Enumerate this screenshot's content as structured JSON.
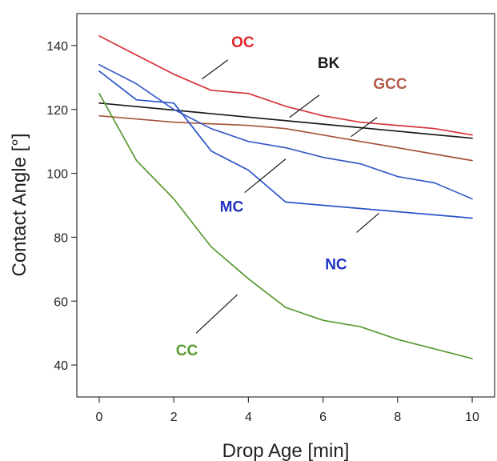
{
  "chart_data": {
    "type": "line",
    "xlabel": "Drop Age [min]",
    "ylabel": "Contact Angle [°]",
    "xlim": [
      -0.6,
      10.6
    ],
    "ylim": [
      30,
      150
    ],
    "xticks": [
      0,
      2,
      4,
      6,
      8,
      10
    ],
    "yticks": [
      40,
      60,
      80,
      100,
      120,
      140
    ],
    "grid": false,
    "legend": "inline labels",
    "series": [
      {
        "name": "OC",
        "color": "#d6313a",
        "x": [
          0,
          1,
          2,
          3,
          4,
          5,
          6,
          7,
          8,
          9,
          10
        ],
        "y": [
          143,
          137,
          131,
          126,
          125,
          121,
          118,
          116,
          115,
          114,
          112
        ]
      },
      {
        "name": "BK",
        "color": "#1a1a1a",
        "x": [
          0,
          10
        ],
        "y": [
          122,
          111
        ]
      },
      {
        "name": "GCC",
        "color": "#a4553a",
        "x": [
          0,
          2,
          4,
          5,
          6,
          7,
          8,
          9,
          10
        ],
        "y": [
          118,
          116,
          115,
          114,
          112,
          110,
          108,
          106,
          104
        ]
      },
      {
        "name": "MC",
        "color": "#3a5bc7",
        "x": [
          0,
          1,
          2,
          3,
          4,
          5,
          6,
          7,
          8,
          9,
          10
        ],
        "y": [
          134,
          128,
          120,
          114,
          110,
          108,
          105,
          103,
          99,
          97,
          92
        ]
      },
      {
        "name": "NC",
        "color": "#2a55c8",
        "x": [
          0,
          1,
          2,
          3,
          4,
          5,
          6,
          7,
          8,
          9,
          10
        ],
        "y": [
          132,
          123,
          122,
          107,
          101,
          91,
          90,
          89,
          88,
          87,
          86
        ]
      },
      {
        "name": "CC",
        "color": "#5a9a32",
        "x": [
          0,
          1,
          2,
          3,
          4,
          5,
          6,
          7,
          8,
          9,
          10
        ],
        "y": [
          125,
          104,
          92,
          77,
          67,
          58,
          54,
          52,
          48,
          45,
          42
        ]
      }
    ],
    "annotations": [
      {
        "text": "OC",
        "color": "#e0262d",
        "x": 3.85,
        "y": 139.5,
        "lx1": 2.75,
        "ly1": 129.5,
        "lx2": 3.45,
        "ly2": 135.5
      },
      {
        "text": "BK",
        "color": "#1a1a1a",
        "x": 6.15,
        "y": 133,
        "lx1": 5.1,
        "ly1": 117.5,
        "lx2": 5.9,
        "ly2": 124.5
      },
      {
        "text": "GCC",
        "color": "#b35a48",
        "x": 7.8,
        "y": 126.5,
        "lx1": 6.75,
        "ly1": 111.5,
        "lx2": 7.45,
        "ly2": 117.5
      },
      {
        "text": "MC",
        "color": "#2233c0",
        "x": 3.55,
        "y": 88,
        "lx1": 3.9,
        "ly1": 94,
        "lx2": 5.0,
        "ly2": 104.5
      },
      {
        "text": "NC",
        "color": "#2233c0",
        "x": 6.35,
        "y": 70,
        "lx1": 6.9,
        "ly1": 81.5,
        "lx2": 7.5,
        "ly2": 87.5
      },
      {
        "text": "CC",
        "color": "#5a9a32",
        "x": 2.35,
        "y": 43,
        "lx1": 2.6,
        "ly1": 50,
        "lx2": 3.7,
        "ly2": 62
      }
    ]
  }
}
